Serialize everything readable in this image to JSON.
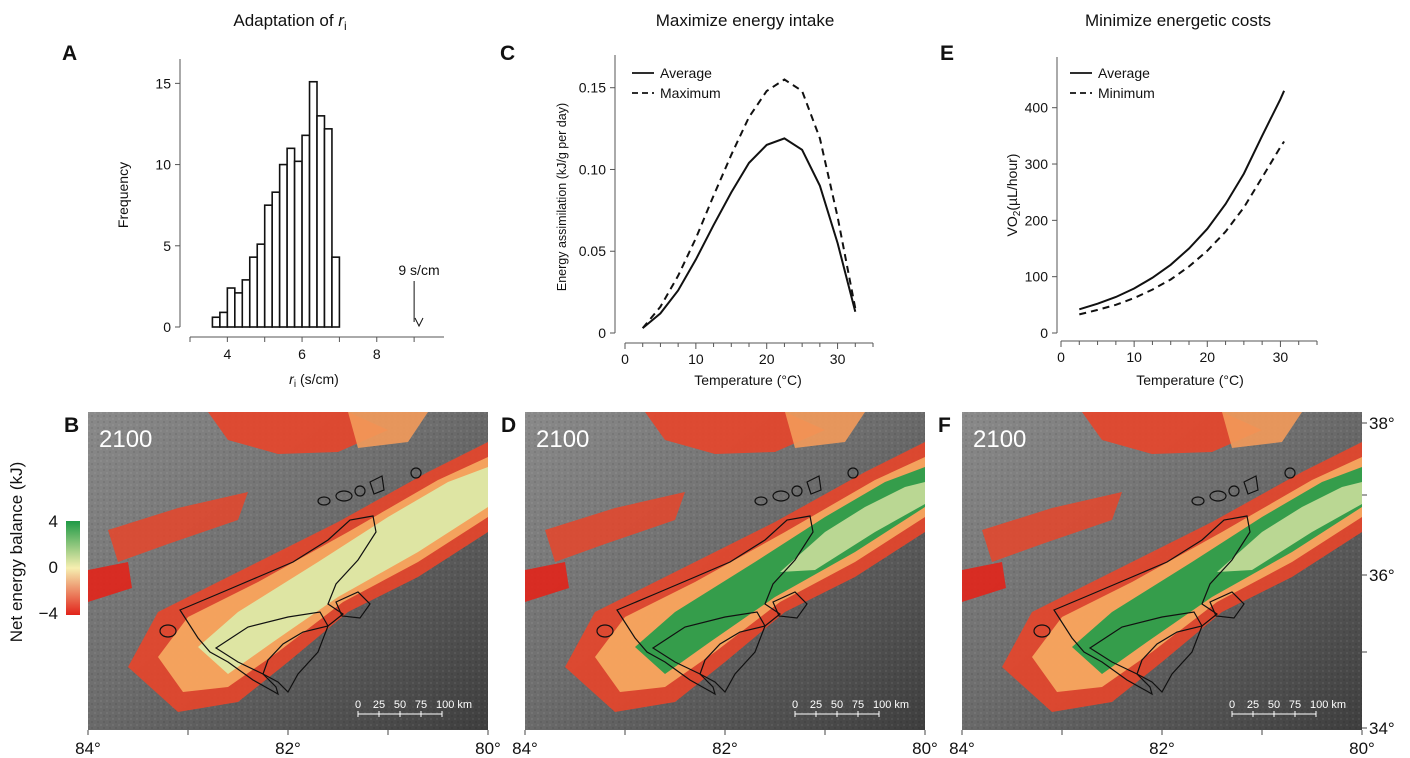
{
  "panels": {
    "A": {
      "letter": "A",
      "title_prefix": "Adaptation of ",
      "title_var": "r",
      "title_sub": "i",
      "xlabel_var": "r",
      "xlabel_sub": "i",
      "xlabel_unit": " (s/cm)",
      "ylabel": "Frequency",
      "annotation": "9 s/cm",
      "xticks": [
        "4",
        "6",
        "8"
      ],
      "yticks": [
        "0",
        "5",
        "10",
        "15"
      ]
    },
    "C": {
      "letter": "C",
      "title": "Maximize energy intake",
      "xlabel": "Temperature (°C)",
      "ylabel": "Energy assimilation (kJ/g per day)",
      "legend": [
        "Average",
        "Maximum"
      ],
      "xticks": [
        "0",
        "10",
        "20",
        "30"
      ],
      "yticks": [
        "0",
        "0.05",
        "0.10",
        "0.15"
      ]
    },
    "E": {
      "letter": "E",
      "title": "Minimize energetic costs",
      "xlabel": "Temperature (°C)",
      "ylabel_main": "(µL/hour)",
      "ylabel_sym": "VO",
      "ylabel_sub": "2",
      "legend": [
        "Average",
        "Minimum"
      ],
      "xticks": [
        "0",
        "10",
        "20",
        "30"
      ],
      "yticks": [
        "0",
        "100",
        "200",
        "300",
        "400"
      ]
    },
    "maps": [
      {
        "letter": "B",
        "year": "2100"
      },
      {
        "letter": "D",
        "year": "2100"
      },
      {
        "letter": "F",
        "year": "2100"
      }
    ],
    "map_lon_labels": [
      "84°",
      "82°",
      "80°"
    ],
    "map_lat_labels": [
      "38°",
      "36°",
      "34°"
    ],
    "scalebar": [
      "0",
      "25",
      "50",
      "75",
      "100 km"
    ],
    "colorbar": {
      "title": "Net energy balance (kJ)",
      "ticks": [
        "4",
        "0",
        "−4"
      ],
      "colors": {
        "high": "#1f9a46",
        "mid": "#f6efb0",
        "low": "#e2231a"
      }
    }
  },
  "chart_data": [
    {
      "type": "bar",
      "panel": "A",
      "title": "Adaptation of ri",
      "xlabel": "ri (s/cm)",
      "ylabel": "Frequency",
      "bin_width": 0.2,
      "bin_starts": [
        3.6,
        3.8,
        4.0,
        4.2,
        4.4,
        4.6,
        4.8,
        5.0,
        5.2,
        5.4,
        5.6,
        5.8,
        6.0,
        6.2,
        6.4,
        6.6,
        6.8,
        7.0
      ],
      "values": [
        0.6,
        0.9,
        2.4,
        2.1,
        2.9,
        4.3,
        5.1,
        7.5,
        8.3,
        10.0,
        11.0,
        10.2,
        11.8,
        15.1,
        13.0,
        12.2,
        4.3,
        0
      ],
      "xlim": [
        3,
        9.8
      ],
      "ylim": [
        0,
        16.5
      ],
      "annotation": {
        "text": "9 s/cm",
        "x": 9
      }
    },
    {
      "type": "line",
      "panel": "C",
      "title": "Maximize energy intake",
      "xlabel": "Temperature (°C)",
      "ylabel": "Energy assimilation (kJ/g per day)",
      "xlim": [
        0,
        35
      ],
      "ylim": [
        0,
        0.17
      ],
      "legend": "top-left",
      "series": [
        {
          "name": "Average",
          "style": "solid",
          "x": [
            2.5,
            5,
            7.5,
            10,
            12.5,
            15,
            17.5,
            20,
            22.5,
            25,
            27.5,
            30,
            32.5
          ],
          "y": [
            0.003,
            0.012,
            0.026,
            0.045,
            0.066,
            0.086,
            0.104,
            0.115,
            0.119,
            0.112,
            0.09,
            0.055,
            0.013
          ]
        },
        {
          "name": "Maximum",
          "style": "dashed",
          "x": [
            2.5,
            5,
            7.5,
            10,
            12.5,
            15,
            17.5,
            20,
            22.5,
            25,
            27.5,
            30,
            32.5
          ],
          "y": [
            0.003,
            0.016,
            0.035,
            0.058,
            0.084,
            0.109,
            0.132,
            0.148,
            0.155,
            0.148,
            0.119,
            0.071,
            0.015
          ]
        }
      ]
    },
    {
      "type": "line",
      "panel": "E",
      "title": "Minimize energetic costs",
      "xlabel": "Temperature (°C)",
      "ylabel": "VO2 (µL/hour)",
      "xlim": [
        0,
        35
      ],
      "ylim": [
        0,
        490
      ],
      "legend": "top-left",
      "series": [
        {
          "name": "Average",
          "style": "solid",
          "x": [
            2.5,
            5,
            7.5,
            10,
            12.5,
            15,
            17.5,
            20,
            22.5,
            25,
            27.5,
            30,
            30.5
          ],
          "y": [
            42,
            52,
            64,
            79,
            98,
            121,
            150,
            185,
            229,
            283,
            350,
            415,
            430
          ]
        },
        {
          "name": "Minimum",
          "style": "dashed",
          "x": [
            2.5,
            5,
            7.5,
            10,
            12.5,
            15,
            17.5,
            20,
            22.5,
            25,
            27.5,
            30,
            30.5
          ],
          "y": [
            33,
            41,
            50,
            62,
            77,
            95,
            118,
            146,
            180,
            223,
            276,
            330,
            340
          ]
        }
      ]
    }
  ]
}
